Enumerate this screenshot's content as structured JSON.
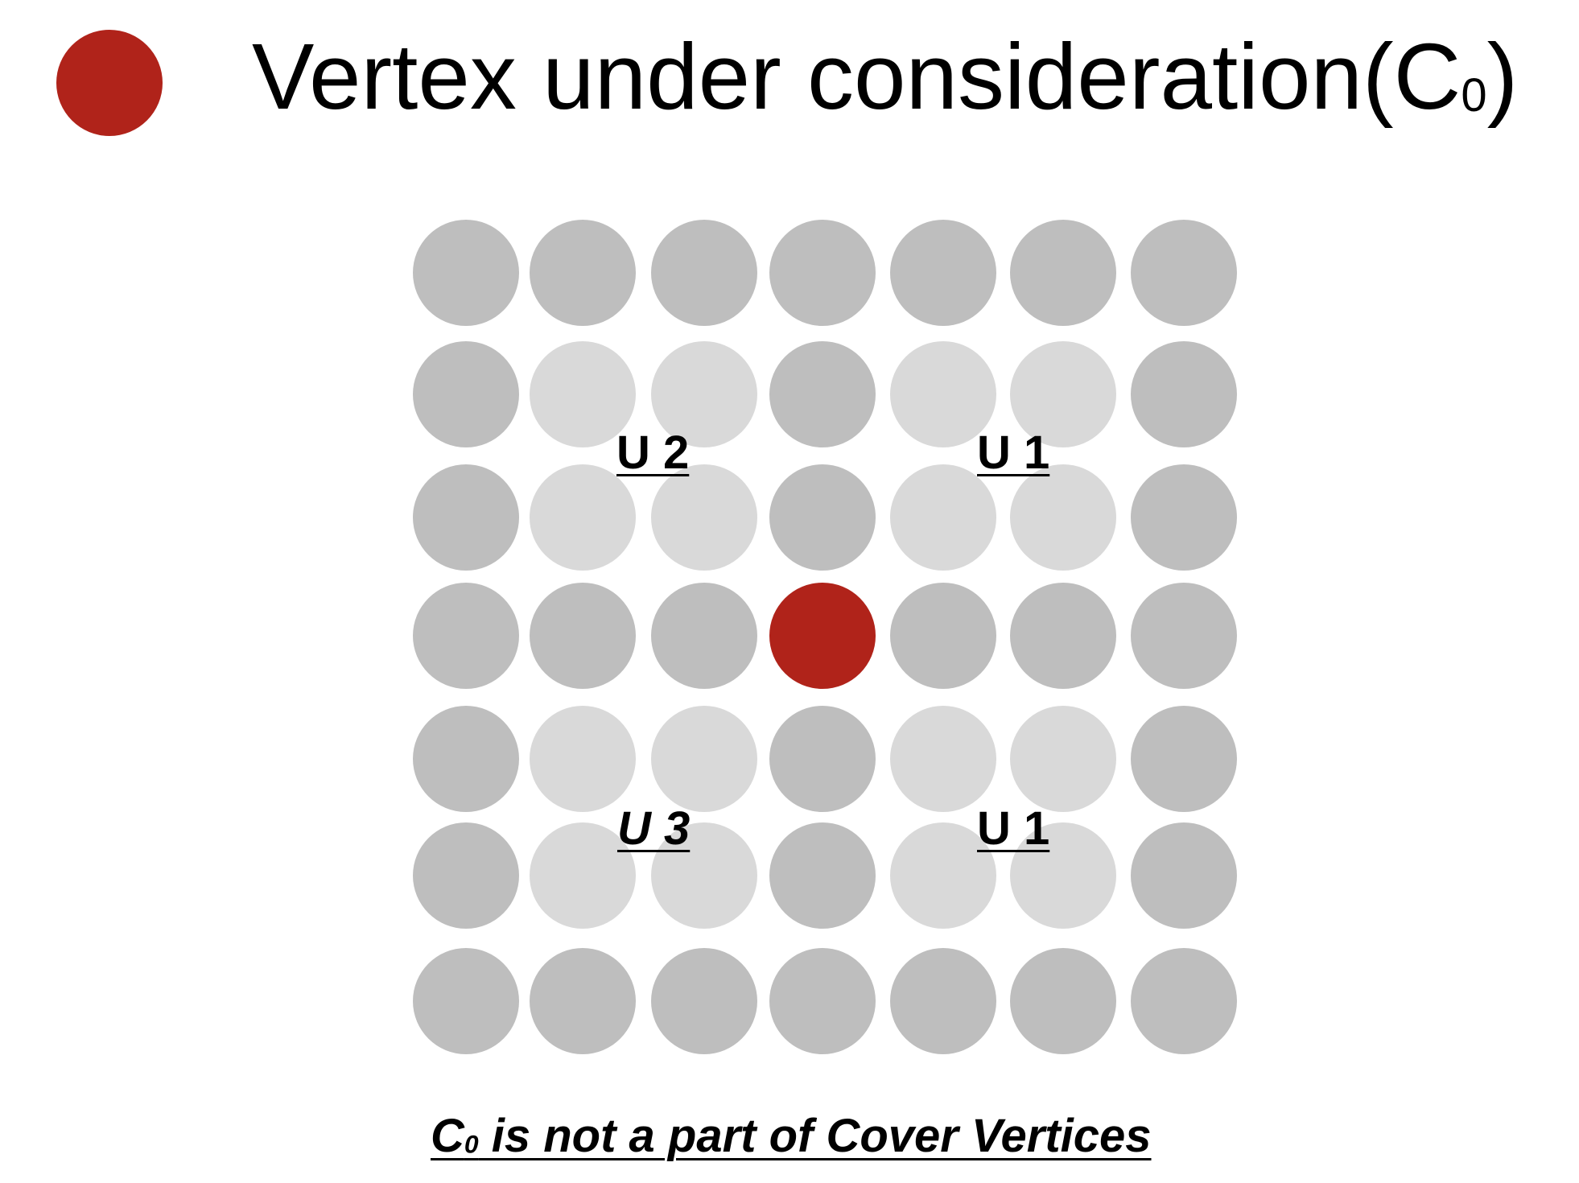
{
  "legend": {
    "label": "Vertex under consideration(C",
    "subscript": "0",
    "closing": ")"
  },
  "colors": {
    "current": "#B0231A",
    "dark": "#BEBEBE",
    "light": "#D9D9D9"
  },
  "grid": {
    "rows": [
      [
        "dark",
        "dark",
        "dark",
        "dark",
        "dark",
        "dark",
        "dark"
      ],
      [
        "dark",
        "light",
        "light",
        "dark",
        "light",
        "light",
        "dark"
      ],
      [
        "dark",
        "light",
        "light",
        "dark",
        "light",
        "light",
        "dark"
      ],
      [
        "dark",
        "dark",
        "dark",
        "current",
        "dark",
        "dark",
        "dark"
      ],
      [
        "dark",
        "light",
        "light",
        "dark",
        "light",
        "light",
        "dark"
      ],
      [
        "dark",
        "light",
        "light",
        "dark",
        "light",
        "light",
        "dark"
      ],
      [
        "dark",
        "dark",
        "dark",
        "dark",
        "dark",
        "dark",
        "dark"
      ]
    ]
  },
  "regions": [
    {
      "text": "U 2",
      "italic": false
    },
    {
      "text": "U 1",
      "italic": false
    },
    {
      "text": "U 3",
      "italic": true
    },
    {
      "text": "U 1",
      "italic": false
    }
  ],
  "caption": {
    "prefix": "C",
    "subscript": "0",
    "rest": " is not a part of Cover Vertices"
  }
}
